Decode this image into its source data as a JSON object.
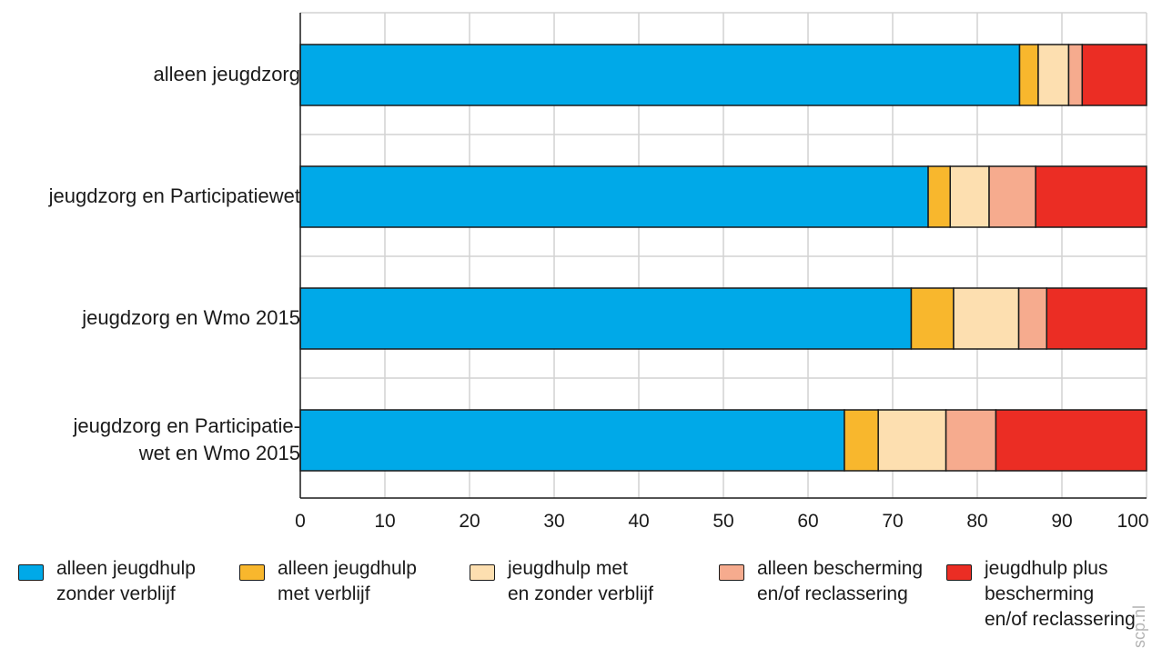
{
  "chart_data": {
    "type": "bar",
    "orientation": "horizontal",
    "stacked": true,
    "categories": [
      "alleen jeugdzorg",
      "jeugdzorg en Participatiewet",
      "jeugdzorg en Wmo 2015",
      "jeugdzorg en Participatie-\nwet en Wmo 2015"
    ],
    "series": [
      {
        "name": "alleen jeugdhulp zonder verblijf",
        "color": "#00a9e8",
        "values": [
          85.0,
          74.2,
          72.2,
          64.3
        ]
      },
      {
        "name": "alleen jeugdhulp met verblijf",
        "color": "#f8b72d",
        "values": [
          2.2,
          2.6,
          5.0,
          4.0
        ]
      },
      {
        "name": "jeugdhulp met en zonder verblijf",
        "color": "#fddfb0",
        "values": [
          3.6,
          4.6,
          7.7,
          8.0
        ]
      },
      {
        "name": "alleen bescherming en/of reclassering",
        "color": "#f6ab8e",
        "values": [
          1.6,
          5.5,
          3.3,
          5.9
        ]
      },
      {
        "name": "jeugdhulp plus bescherming en/of reclassering",
        "color": "#eb2d24",
        "values": [
          7.6,
          13.1,
          11.8,
          17.8
        ]
      }
    ],
    "xlim": [
      0,
      100
    ],
    "xticks": [
      "0",
      "10",
      "20",
      "30",
      "40",
      "50",
      "60",
      "70",
      "80",
      "90",
      "100"
    ],
    "grid": true,
    "legend_position": "bottom"
  },
  "legend": [
    {
      "line1": "alleen jeugdhulp",
      "line2": "zonder verblijf"
    },
    {
      "line1": "alleen jeugdhulp",
      "line2": "met verblijf"
    },
    {
      "line1": "jeugdhulp met",
      "line2": "en zonder verblijf"
    },
    {
      "line1": "alleen bescherming",
      "line2": "en/of reclassering"
    },
    {
      "line1": "jeugdhulp plus",
      "line2": "bescherming",
      "line3": "en/of reclassering"
    }
  ],
  "watermark": "scp.nl"
}
